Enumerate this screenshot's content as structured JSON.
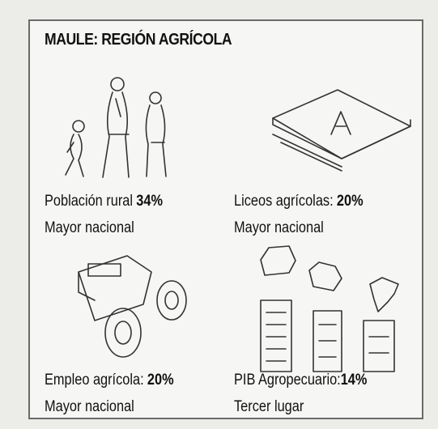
{
  "title": "MAULE: REGIÓN AGRÍCOLA",
  "items": [
    {
      "label": "Población rural",
      "value": "34%",
      "note": "Mayor nacional"
    },
    {
      "label": "Liceos agrícolas:",
      "value": "20%",
      "note": "Mayor nacional"
    },
    {
      "label": "Empleo agrícola:",
      "value": "20%",
      "note": "Mayor nacional"
    },
    {
      "label": "PIB Agropecuario:",
      "value": "14%",
      "note": "Tercer lugar"
    }
  ]
}
